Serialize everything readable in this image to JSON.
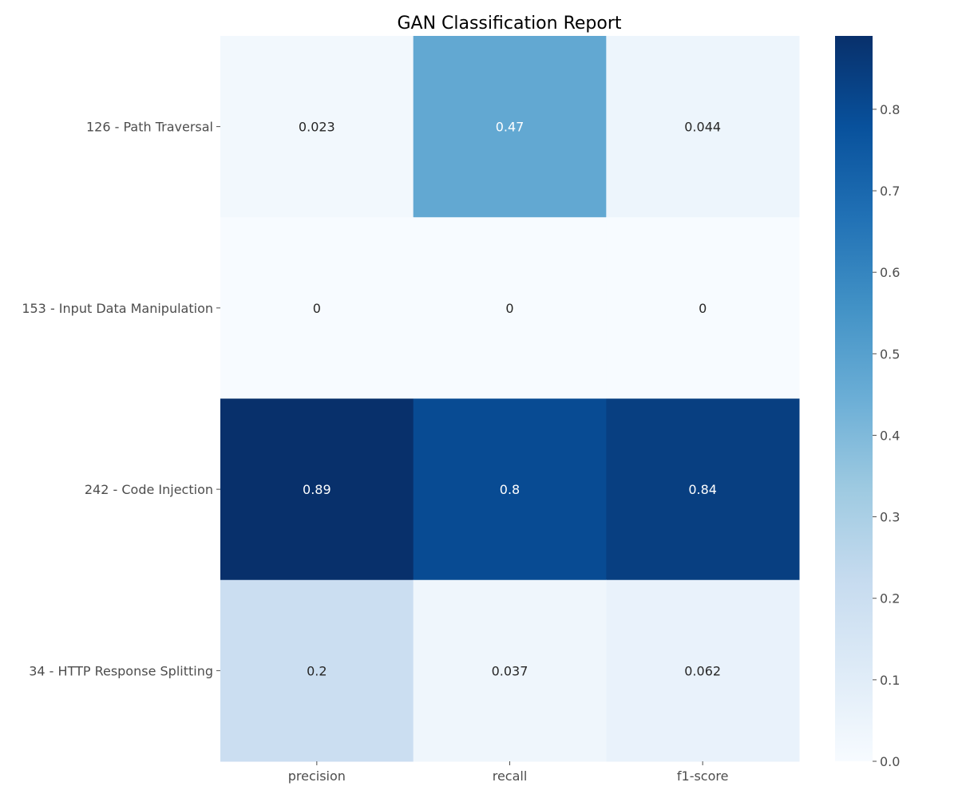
{
  "chart_data": {
    "type": "heatmap",
    "title": "GAN Classification Report",
    "xlabel": "",
    "ylabel": "",
    "columns": [
      "precision",
      "recall",
      "f1-score"
    ],
    "rows": [
      "126 - Path Traversal",
      "153 - Input Data Manipulation",
      "242 - Code Injection",
      "34 - HTTP Response Splitting"
    ],
    "values": [
      [
        0.023,
        0.47,
        0.044
      ],
      [
        0,
        0,
        0
      ],
      [
        0.89,
        0.8,
        0.84
      ],
      [
        0.2,
        0.037,
        0.062
      ]
    ],
    "labels": [
      [
        "0.023",
        "0.47",
        "0.044"
      ],
      [
        "0",
        "0",
        "0"
      ],
      [
        "0.89",
        "0.8",
        "0.84"
      ],
      [
        "0.2",
        "0.037",
        "0.062"
      ]
    ],
    "colormap": "Blues",
    "vmin": 0,
    "vmax": 0.89,
    "colorbar_ticks": [
      "0.0",
      "0.1",
      "0.2",
      "0.3",
      "0.4",
      "0.5",
      "0.6",
      "0.7",
      "0.8"
    ]
  }
}
